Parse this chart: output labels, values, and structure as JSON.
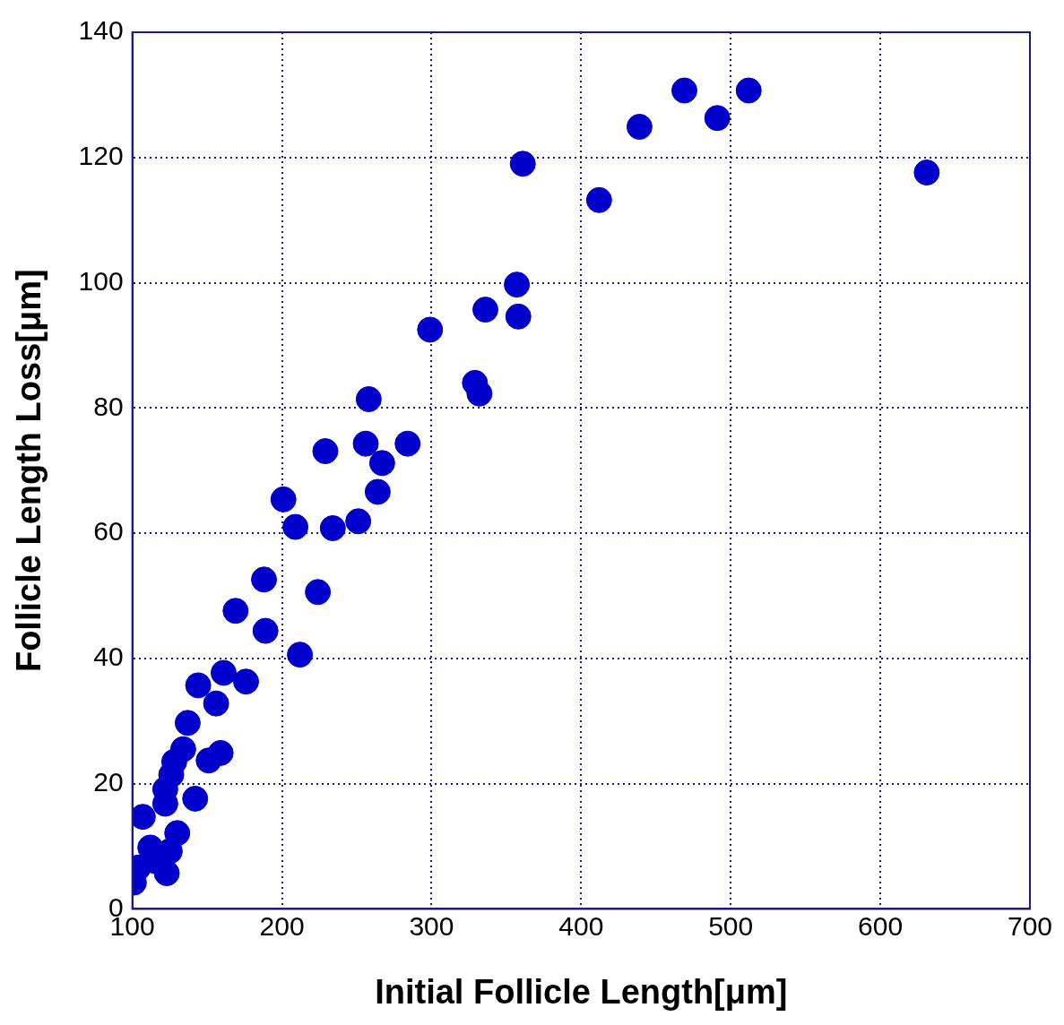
{
  "chart_data": {
    "type": "scatter",
    "xlabel": "Initial Follicle Length[μm]",
    "ylabel": "Follicle Length Loss[μm]",
    "xlim": [
      100,
      700
    ],
    "xticks": [
      100,
      200,
      300,
      400,
      500,
      600,
      700
    ],
    "ylim": [
      0,
      140
    ],
    "yticks": [
      0,
      20,
      40,
      60,
      80,
      100,
      120,
      140
    ],
    "grid": true,
    "legend": false,
    "marker": "circle",
    "series": [
      {
        "color": "#0000cc",
        "x": [
          631,
          512,
          469,
          491,
          439,
          412,
          361,
          357,
          336,
          358,
          299,
          329,
          332,
          258,
          284,
          256,
          229,
          267,
          264,
          201,
          209,
          234,
          251,
          188,
          224,
          169,
          189,
          212,
          144,
          161,
          170,
          176,
          156,
          137,
          159,
          151,
          134,
          128,
          126,
          122,
          122,
          142,
          107,
          130,
          112,
          125,
          104,
          116,
          123,
          101
        ],
        "values": [
          117.6,
          130.7,
          130.7,
          126.3,
          124.9,
          113.2,
          119,
          99.7,
          95.7,
          94.6,
          92.5,
          84,
          82.3,
          81.4,
          74.3,
          74.3,
          73.1,
          71.2,
          66.6,
          65.4,
          61,
          60.8,
          61.9,
          52.6,
          50.6,
          47.6,
          44.4,
          40.6,
          35.7,
          37.7,
          null,
          36.3,
          32.8,
          29.7,
          24.9,
          23.7,
          25.5,
          23.5,
          21.4,
          19.1,
          16.8,
          17.6,
          14.7,
          12.1,
          9.8,
          9.2,
          6.6,
          7.6,
          5.7,
          4.2
        ]
      }
    ]
  }
}
